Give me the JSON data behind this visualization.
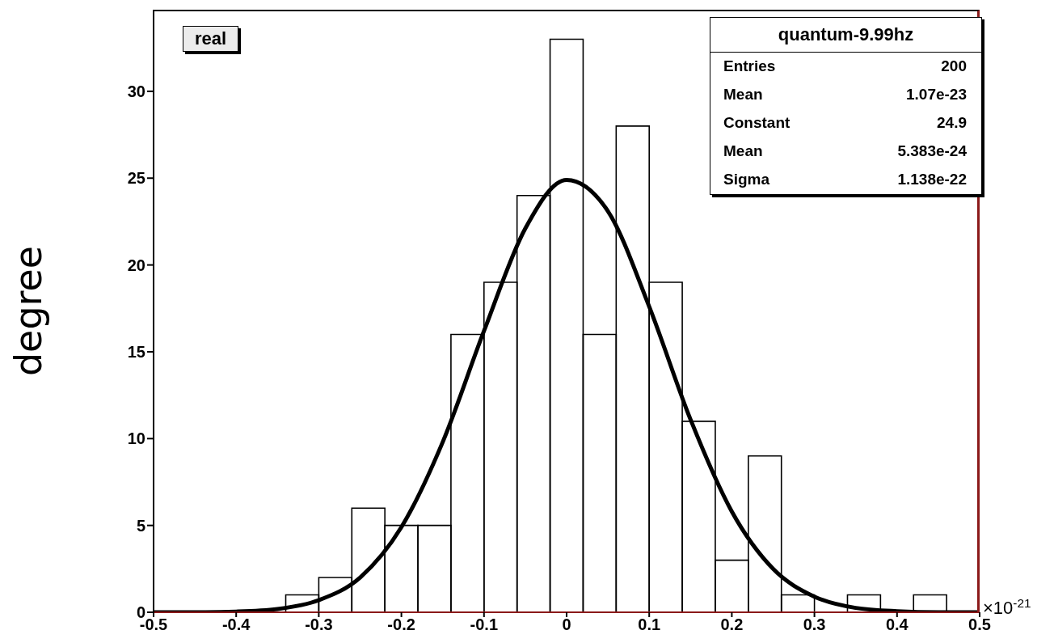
{
  "chart_data": {
    "type": "histogram",
    "title": "real",
    "ylabel": "degree",
    "bins": [
      -0.5,
      -0.46,
      -0.42,
      -0.38,
      -0.34,
      -0.3,
      -0.26,
      -0.22,
      -0.18,
      -0.14,
      -0.1,
      -0.06,
      -0.02,
      0.02,
      0.06,
      0.1,
      0.14,
      0.18,
      0.22,
      0.26,
      0.3,
      0.34,
      0.38,
      0.42,
      0.46,
      0.5
    ],
    "series": [
      {
        "color": "#000000",
        "values": [
          0,
          0,
          0,
          0,
          1,
          2,
          6,
          5,
          5,
          16,
          19,
          24,
          33,
          16,
          28,
          19,
          11,
          3,
          9,
          1,
          0,
          1,
          0,
          1,
          0
        ]
      },
      {
        "type": "line",
        "color": "#000000",
        "x": [
          -0.5,
          -0.45,
          -0.4,
          -0.35,
          -0.3,
          -0.25,
          -0.2,
          -0.15,
          -0.1,
          -0.05,
          0,
          0.05,
          0.1,
          0.15,
          0.2,
          0.25,
          0.3,
          0.35,
          0.4,
          0.45,
          0.5
        ],
        "values": [
          0,
          0,
          0.04,
          0.19,
          0.7,
          2,
          4.9,
          9.8,
          16.2,
          22.1,
          24.9,
          23.1,
          17.6,
          11.1,
          5.8,
          2.5,
          0.9,
          0.25,
          0.06,
          0,
          0
        ]
      }
    ],
    "xlim": [
      -0.5,
      0.5
    ],
    "xticks": [
      -0.5,
      -0.4,
      -0.3,
      -0.2,
      -0.1,
      0,
      0.1,
      0.2,
      0.3,
      0.4,
      0.5
    ],
    "ylim": [
      0,
      34.7
    ],
    "yticks": [
      0,
      5,
      10,
      15,
      20,
      25,
      30
    ],
    "annotations": [
      "×10$^{-21}$",
      "quantum-9.99hz",
      "Entries",
      "200",
      "Mean",
      "1.07e-23",
      "Constant",
      "24.9",
      "Mean",
      "5.383e-24",
      "Sigma",
      "1.138e-22"
    ]
  }
}
